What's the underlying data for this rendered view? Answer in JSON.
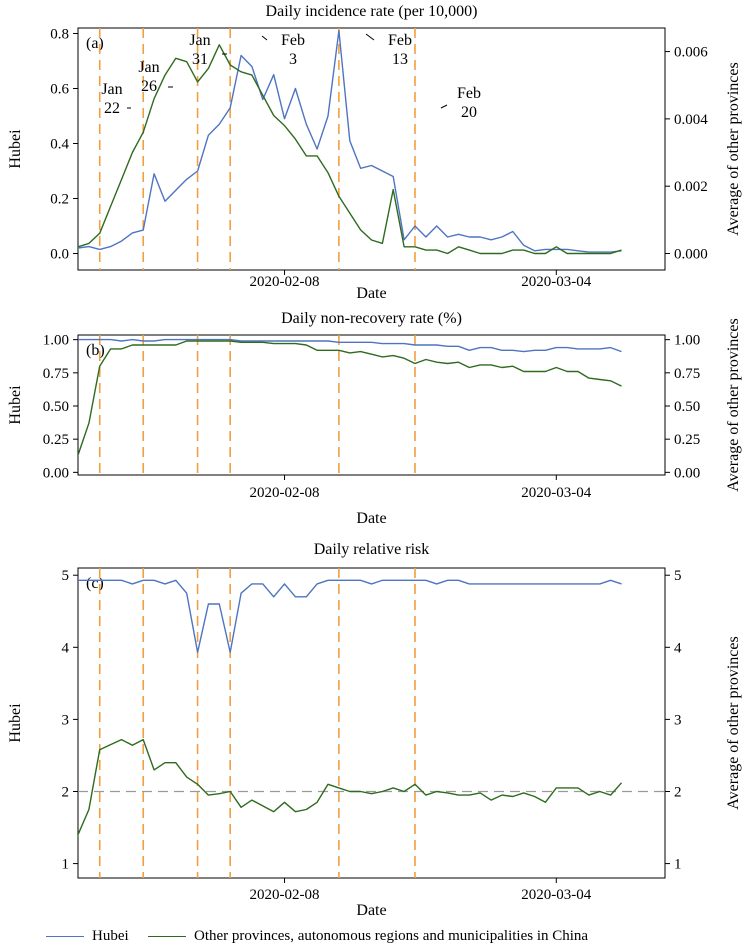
{
  "legend": {
    "hubei_label": "Hubei",
    "other_label": "Other provinces, autonomous regions and municipalities in China",
    "hubei_color": "#4f74c2",
    "other_color": "#2e6b1f"
  },
  "event_line_color": "#f0a040",
  "chart_data": [
    {
      "type": "line",
      "panel_tag": "(a)",
      "title": "Daily incidence rate (per 10,000)",
      "xlabel": "Date",
      "ylabel": "Hubei",
      "y2label": "Average of other provinces",
      "xlim": [
        -1,
        53
      ],
      "ylim": [
        -0.06,
        0.82
      ],
      "y2lim": [
        -0.00049,
        0.0067
      ],
      "yticks": [
        "0.0",
        "0.2",
        "0.4",
        "0.6",
        "0.8"
      ],
      "y2ticks": [
        "0.000",
        "0.002",
        "0.004",
        "0.006"
      ],
      "xticks": [
        {
          "x": 18,
          "label": "2020-02-08"
        },
        {
          "x": 43,
          "label": "2020-03-04"
        }
      ],
      "events": [
        {
          "x": 1,
          "label": [
            "Jan",
            "22"
          ]
        },
        {
          "x": 5,
          "label": [
            "Jan",
            "26"
          ]
        },
        {
          "x": 10,
          "label": [
            "Jan",
            "31"
          ]
        },
        {
          "x": 13,
          "label": [
            "Feb",
            "3"
          ]
        },
        {
          "x": 23,
          "label": [
            "Feb",
            "13"
          ]
        },
        {
          "x": 30,
          "label": [
            "Feb",
            "20"
          ]
        }
      ],
      "series": [
        {
          "name": "Hubei",
          "axis": "left",
          "x": [
            -2,
            -1,
            0,
            1,
            2,
            3,
            4,
            5,
            6,
            7,
            8,
            9,
            10,
            11,
            12,
            13,
            14,
            15,
            16,
            17,
            18,
            19,
            20,
            21,
            22,
            23,
            24,
            25,
            26,
            27,
            28,
            29,
            30,
            31,
            32,
            33,
            34,
            35,
            36,
            37,
            38,
            39,
            40,
            41,
            42,
            43,
            44,
            45,
            46,
            47,
            48,
            49
          ],
          "values": [
            0.0,
            0.02,
            0.025,
            0.015,
            0.025,
            0.045,
            0.075,
            0.085,
            0.29,
            0.19,
            0.23,
            0.27,
            0.3,
            0.43,
            0.47,
            0.53,
            0.72,
            0.68,
            0.56,
            0.65,
            0.49,
            0.6,
            0.47,
            0.38,
            0.5,
            0.81,
            0.41,
            0.31,
            0.32,
            0.3,
            0.28,
            0.05,
            0.1,
            0.06,
            0.1,
            0.06,
            0.07,
            0.06,
            0.06,
            0.05,
            0.06,
            0.08,
            0.03,
            0.01,
            0.015,
            0.015,
            0.015,
            0.01,
            0.005,
            0.005,
            0.005,
            0.01
          ]
        },
        {
          "name": "Other provinces, autonomous regions and municipalities in China",
          "axis": "right",
          "x": [
            -2,
            -1,
            0,
            1,
            2,
            3,
            4,
            5,
            6,
            7,
            8,
            9,
            10,
            11,
            12,
            13,
            14,
            15,
            16,
            17,
            18,
            19,
            20,
            21,
            22,
            23,
            24,
            25,
            26,
            27,
            28,
            29,
            30,
            31,
            32,
            33,
            34,
            35,
            36,
            37,
            38,
            39,
            40,
            41,
            42,
            43,
            44,
            45,
            46,
            47,
            48,
            49
          ],
          "values": [
            0.0,
            0.0002,
            0.0003,
            0.0006,
            0.0014,
            0.0022,
            0.003,
            0.0036,
            0.0046,
            0.0053,
            0.0058,
            0.0057,
            0.0051,
            0.0055,
            0.0062,
            0.0056,
            0.0054,
            0.0053,
            0.0047,
            0.0041,
            0.0038,
            0.0034,
            0.0029,
            0.0029,
            0.0024,
            0.0017,
            0.0012,
            0.0007,
            0.0004,
            0.0003,
            0.0019,
            0.0002,
            0.0002,
            0.0001,
            0.0001,
            0.0,
            0.0002,
            0.0001,
            0.0,
            0.0,
            0.0,
            0.0001,
            0.0001,
            0.0,
            0.0,
            0.0002,
            0.0,
            0.0,
            0.0,
            0.0,
            0.0,
            0.0001
          ]
        }
      ]
    },
    {
      "type": "line",
      "panel_tag": "(b)",
      "title": "Daily non-recovery rate (%)",
      "xlabel": "Date",
      "ylabel": "Hubei",
      "y2label": "Average of other provinces",
      "xlim": [
        -1,
        53
      ],
      "ylim": [
        -0.02,
        1.035
      ],
      "y2lim": [
        -0.02,
        1.035
      ],
      "yticks": [
        "0.00",
        "0.25",
        "0.50",
        "0.75",
        "1.00"
      ],
      "y2ticks": [
        "0.00",
        "0.25",
        "0.50",
        "0.75",
        "1.00"
      ],
      "xticks": [
        {
          "x": 18,
          "label": "2020-02-08"
        },
        {
          "x": 43,
          "label": "2020-03-04"
        }
      ],
      "events": [
        {
          "x": 1
        },
        {
          "x": 5
        },
        {
          "x": 10
        },
        {
          "x": 13
        },
        {
          "x": 23
        },
        {
          "x": 30
        }
      ],
      "series": [
        {
          "name": "Hubei",
          "axis": "left",
          "x": [
            -2,
            -1,
            0,
            1,
            2,
            3,
            4,
            5,
            6,
            7,
            8,
            9,
            10,
            11,
            12,
            13,
            14,
            15,
            16,
            17,
            18,
            19,
            20,
            21,
            22,
            23,
            24,
            25,
            26,
            27,
            28,
            29,
            30,
            31,
            32,
            33,
            34,
            35,
            36,
            37,
            38,
            39,
            40,
            41,
            42,
            43,
            44,
            45,
            46,
            47,
            48,
            49
          ],
          "values": [
            0.99,
            1.0,
            1.0,
            1.0,
            1.0,
            0.99,
            1.0,
            0.99,
            0.99,
            1.0,
            1.0,
            1.0,
            1.0,
            1.0,
            1.0,
            1.0,
            0.99,
            0.99,
            0.99,
            0.99,
            0.99,
            0.99,
            0.99,
            0.99,
            0.99,
            0.98,
            0.98,
            0.98,
            0.98,
            0.97,
            0.97,
            0.97,
            0.96,
            0.96,
            0.96,
            0.95,
            0.95,
            0.92,
            0.94,
            0.94,
            0.92,
            0.92,
            0.91,
            0.92,
            0.92,
            0.94,
            0.94,
            0.93,
            0.93,
            0.93,
            0.94,
            0.91
          ]
        },
        {
          "name": "Other provinces, autonomous regions and municipalities in China",
          "axis": "right",
          "x": [
            -2,
            -1,
            0,
            1,
            2,
            3,
            4,
            5,
            6,
            7,
            8,
            9,
            10,
            11,
            12,
            13,
            14,
            15,
            16,
            17,
            18,
            19,
            20,
            21,
            22,
            23,
            24,
            25,
            26,
            27,
            28,
            29,
            30,
            31,
            32,
            33,
            34,
            35,
            36,
            37,
            38,
            39,
            40,
            41,
            42,
            43,
            44,
            45,
            46,
            47,
            48,
            49
          ],
          "values": [
            0.03,
            0.13,
            0.37,
            0.8,
            0.93,
            0.93,
            0.96,
            0.96,
            0.96,
            0.96,
            0.96,
            0.99,
            0.99,
            0.99,
            0.99,
            0.99,
            0.98,
            0.98,
            0.98,
            0.97,
            0.97,
            0.97,
            0.96,
            0.92,
            0.92,
            0.92,
            0.9,
            0.91,
            0.89,
            0.87,
            0.88,
            0.86,
            0.82,
            0.85,
            0.83,
            0.82,
            0.83,
            0.79,
            0.81,
            0.81,
            0.79,
            0.8,
            0.76,
            0.76,
            0.76,
            0.79,
            0.76,
            0.76,
            0.71,
            0.7,
            0.69,
            0.65
          ]
        }
      ]
    },
    {
      "type": "line",
      "panel_tag": "(c)",
      "title": "Daily relative risk",
      "xlabel": "Date",
      "ylabel": "Hubei",
      "y2label": "Average of other provinces",
      "xlim": [
        -1,
        53
      ],
      "ylim": [
        0.8,
        5.1
      ],
      "y2lim": [
        0.8,
        5.1
      ],
      "yticks": [
        "1",
        "2",
        "3",
        "4",
        "5"
      ],
      "y2ticks": [
        "1",
        "2",
        "3",
        "4",
        "5"
      ],
      "reference_line": 2,
      "xticks": [
        {
          "x": 18,
          "label": "2020-02-08"
        },
        {
          "x": 43,
          "label": "2020-03-04"
        }
      ],
      "events": [
        {
          "x": 1
        },
        {
          "x": 5
        },
        {
          "x": 10
        },
        {
          "x": 13
        },
        {
          "x": 23
        },
        {
          "x": 30
        }
      ],
      "series": [
        {
          "name": "Hubei",
          "axis": "left",
          "x": [
            -2,
            -1,
            0,
            1,
            2,
            3,
            4,
            5,
            6,
            7,
            8,
            9,
            10,
            11,
            12,
            13,
            14,
            15,
            16,
            17,
            18,
            19,
            20,
            21,
            22,
            23,
            24,
            25,
            26,
            27,
            28,
            29,
            30,
            31,
            32,
            33,
            34,
            35,
            36,
            37,
            38,
            39,
            40,
            41,
            42,
            43,
            44,
            45,
            46,
            47,
            48,
            49
          ],
          "values": [
            4.93,
            4.93,
            4.93,
            4.93,
            4.93,
            4.93,
            4.88,
            4.93,
            4.93,
            4.88,
            4.93,
            4.75,
            3.93,
            4.6,
            4.6,
            3.93,
            4.75,
            4.88,
            4.88,
            4.7,
            4.88,
            4.7,
            4.7,
            4.88,
            4.93,
            4.93,
            4.93,
            4.93,
            4.88,
            4.93,
            4.93,
            4.93,
            4.93,
            4.93,
            4.88,
            4.93,
            4.93,
            4.88,
            4.88,
            4.88,
            4.88,
            4.88,
            4.88,
            4.88,
            4.88,
            4.88,
            4.88,
            4.88,
            4.88,
            4.88,
            4.93,
            4.88
          ]
        },
        {
          "name": "Other provinces, autonomous regions and municipalities in China",
          "axis": "right",
          "x": [
            -2,
            -1,
            0,
            1,
            2,
            3,
            4,
            5,
            6,
            7,
            8,
            9,
            10,
            11,
            12,
            13,
            14,
            15,
            16,
            17,
            18,
            19,
            20,
            21,
            22,
            23,
            24,
            25,
            26,
            27,
            28,
            29,
            30,
            31,
            32,
            33,
            34,
            35,
            36,
            37,
            38,
            39,
            40,
            41,
            42,
            43,
            44,
            45,
            46,
            47,
            48,
            49
          ],
          "values": [
            1.05,
            1.4,
            1.75,
            2.58,
            2.65,
            2.72,
            2.64,
            2.72,
            2.3,
            2.4,
            2.4,
            2.2,
            2.1,
            1.95,
            1.97,
            2.0,
            1.78,
            1.88,
            1.8,
            1.72,
            1.85,
            1.72,
            1.75,
            1.85,
            2.1,
            2.05,
            2.0,
            2.0,
            1.97,
            2.0,
            2.05,
            2.0,
            2.1,
            1.95,
            2.0,
            1.98,
            1.95,
            1.95,
            1.98,
            1.88,
            1.95,
            1.93,
            1.98,
            1.93,
            1.85,
            2.05,
            2.05,
            2.05,
            1.95,
            2.0,
            1.95,
            2.12
          ]
        }
      ]
    }
  ]
}
